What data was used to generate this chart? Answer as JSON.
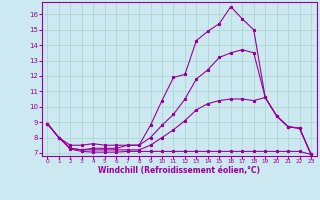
{
  "xlabel": "Windchill (Refroidissement éolien,°C)",
  "bg_color": "#cce8f0",
  "line_color": "#990099",
  "grid_color": "#aad4cc",
  "xlim": [
    -0.5,
    23.5
  ],
  "ylim": [
    6.8,
    16.8
  ],
  "yticks": [
    7,
    8,
    9,
    10,
    11,
    12,
    13,
    14,
    15,
    16
  ],
  "xticks": [
    0,
    1,
    2,
    3,
    4,
    5,
    6,
    7,
    8,
    9,
    10,
    11,
    12,
    13,
    14,
    15,
    16,
    17,
    18,
    19,
    20,
    21,
    22,
    23
  ],
  "line1_x": [
    0,
    1,
    2,
    3,
    4,
    5,
    6,
    7,
    8,
    9,
    10,
    11,
    12,
    13,
    14,
    15,
    16,
    17,
    18,
    19,
    20,
    21,
    22,
    23
  ],
  "line1_y": [
    8.9,
    8.0,
    7.25,
    7.1,
    7.05,
    7.05,
    7.05,
    7.1,
    7.1,
    7.1,
    7.1,
    7.1,
    7.1,
    7.1,
    7.1,
    7.1,
    7.1,
    7.1,
    7.1,
    7.1,
    7.1,
    7.1,
    7.1,
    6.9
  ],
  "line2_x": [
    0,
    1,
    2,
    3,
    4,
    5,
    6,
    7,
    8,
    9,
    10,
    11,
    12,
    13,
    14,
    15,
    16,
    17,
    18,
    19,
    20,
    21,
    22,
    23
  ],
  "line2_y": [
    8.9,
    8.0,
    7.5,
    7.5,
    7.6,
    7.5,
    7.5,
    7.5,
    7.5,
    8.8,
    10.4,
    11.9,
    12.1,
    14.3,
    14.9,
    15.4,
    16.5,
    15.7,
    15.0,
    10.6,
    9.4,
    8.7,
    8.6,
    6.9
  ],
  "line3_x": [
    0,
    1,
    2,
    3,
    4,
    5,
    6,
    7,
    8,
    9,
    10,
    11,
    12,
    13,
    14,
    15,
    16,
    17,
    18,
    19,
    20,
    21,
    22,
    23
  ],
  "line3_y": [
    8.9,
    8.0,
    7.3,
    7.2,
    7.3,
    7.3,
    7.3,
    7.5,
    7.5,
    8.0,
    8.8,
    9.5,
    10.5,
    11.8,
    12.4,
    13.2,
    13.5,
    13.7,
    13.5,
    10.6,
    9.4,
    8.7,
    8.6,
    6.9
  ],
  "line4_x": [
    0,
    1,
    2,
    3,
    4,
    5,
    6,
    7,
    8,
    9,
    10,
    11,
    12,
    13,
    14,
    15,
    16,
    17,
    18,
    19,
    20,
    21,
    22,
    23
  ],
  "line4_y": [
    8.9,
    8.0,
    7.3,
    7.2,
    7.2,
    7.2,
    7.2,
    7.2,
    7.2,
    7.5,
    8.0,
    8.5,
    9.1,
    9.8,
    10.2,
    10.4,
    10.5,
    10.5,
    10.4,
    10.6,
    9.4,
    8.7,
    8.6,
    6.9
  ]
}
